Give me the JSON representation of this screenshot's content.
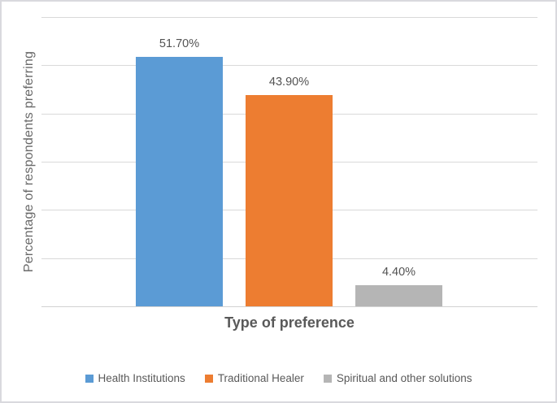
{
  "chart_data": {
    "type": "bar",
    "categories": [
      "Health Institutions",
      "Traditional Healer",
      "Spiritual and other solutions"
    ],
    "values": [
      51.7,
      43.9,
      4.4
    ],
    "value_labels": [
      "51.70%",
      "43.90%",
      "4.40%"
    ],
    "series_colors": [
      "#5B9BD5",
      "#ED7D31",
      "#B5B5B5"
    ],
    "title": "",
    "xlabel": "Type of preference",
    "ylabel": "Percentage of respondents preferring",
    "ylim": [
      0,
      60
    ],
    "gridline_interval": 10,
    "grid": true,
    "y_tick_labels_visible": false,
    "x_tick_labels_visible": false,
    "legend_position": "bottom",
    "legend": [
      "Health Institutions",
      "Traditional Healer",
      "Spiritual and other solutions"
    ]
  },
  "colors": {
    "gridline": "#D9D9D9",
    "axis_line": "#D2D2D2",
    "bar_blue": "#5B9BD5",
    "bar_orange": "#ED7D31",
    "bar_gray": "#B5B5B5",
    "label_text": "#595959",
    "figure_border": "#D9D9DE",
    "background": "#FFFFFF"
  }
}
